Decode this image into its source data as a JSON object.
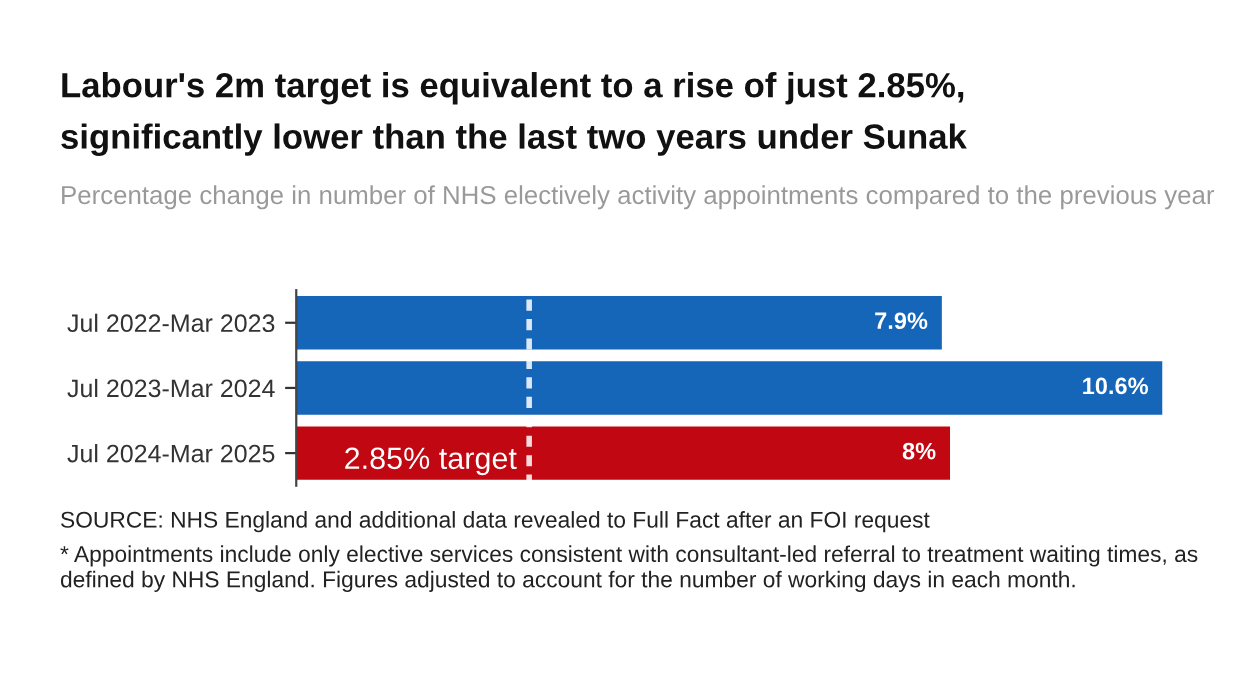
{
  "chart_data": {
    "type": "bar",
    "orientation": "horizontal",
    "title": "Labour's 2m target is equivalent to a rise of just 2.85%,\nsignificantly lower than the last two years under Sunak",
    "subtitle": "Percentage change in number of NHS electively activity appointments compared to the previous year",
    "categories": [
      "Jul 2022-Mar 2023",
      "Jul 2023-Mar 2024",
      "Jul 2024-Mar 2025"
    ],
    "values": [
      7.9,
      10.6,
      8
    ],
    "colors": [
      "#1565b8",
      "#1565b8",
      "#c10812"
    ],
    "value_labels": [
      "7.9%",
      "10.6%",
      "8%"
    ],
    "xlim": [
      0,
      10.6
    ],
    "tick_labels": "y",
    "grid": false,
    "legend": false,
    "ref_lines": [
      {
        "axis": "x",
        "value": 2.85,
        "label": "2.85% target",
        "color": "#ffffff",
        "line_style": "dashed"
      }
    ],
    "annotations": [
      "SOURCE: NHS England and additional data revealed to Full Fact after an FOI request",
      "* Appointments include only elective services consistent with consultant-led referral to treatment waiting times, as defined by NHS England. Figures adjusted to account for the number of working days in each month."
    ]
  }
}
